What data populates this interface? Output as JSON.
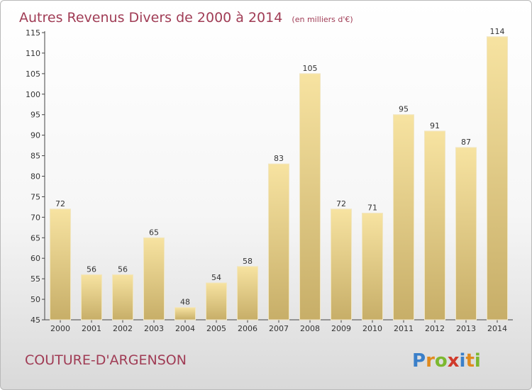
{
  "chart_data": {
    "type": "bar",
    "title": "Autres Revenus Divers de 2000 à 2014",
    "subtitle": "(en milliers d'€)",
    "categories": [
      "2000",
      "2001",
      "2002",
      "2003",
      "2004",
      "2005",
      "2006",
      "2007",
      "2008",
      "2009",
      "2010",
      "2011",
      "2012",
      "2013",
      "2014"
    ],
    "values": [
      72,
      56,
      56,
      65,
      48,
      54,
      58,
      83,
      105,
      72,
      71,
      95,
      91,
      87,
      114
    ],
    "ylim": [
      45,
      115
    ],
    "yticks": [
      45,
      50,
      55,
      60,
      65,
      70,
      75,
      80,
      85,
      90,
      95,
      100,
      105,
      110,
      115
    ],
    "grid": false,
    "bar_color": "#e8cf84"
  },
  "footer": {
    "commune": "COUTURE-D'ARGENSON",
    "logo_letters": [
      "P",
      "r",
      "o",
      "x",
      "i",
      "t",
      "i"
    ],
    "logo_colors": [
      "#3a7fc9",
      "#e08a1e",
      "#7cb82f",
      "#d03a2b",
      "#3a7fc9",
      "#e08a1e",
      "#7cb82f"
    ]
  }
}
